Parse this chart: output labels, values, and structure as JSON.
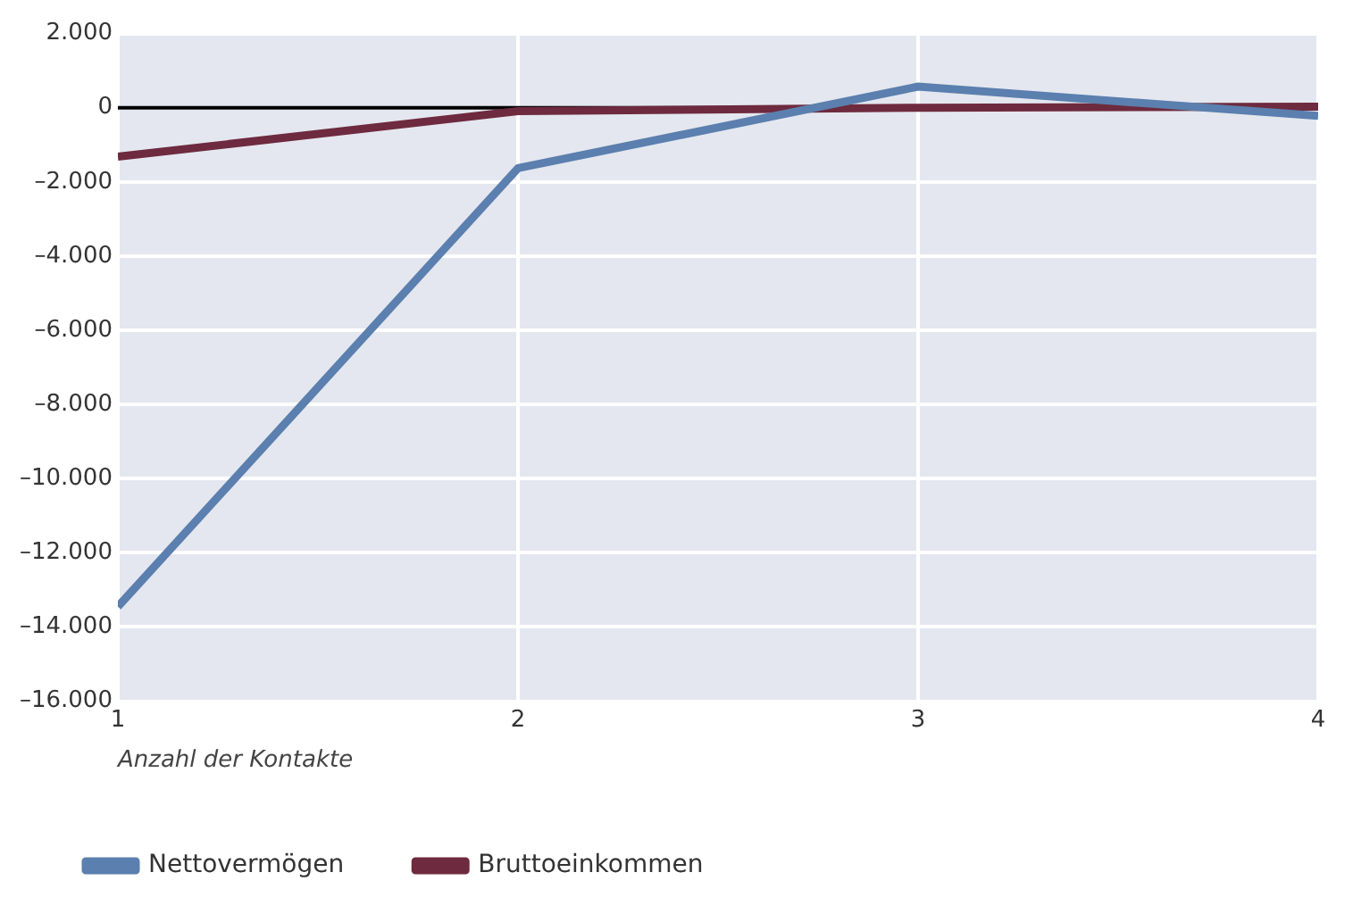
{
  "chart_data": {
    "type": "line",
    "xlabel": "Anzahl der Kontakte",
    "x": [
      1,
      2,
      3,
      4
    ],
    "series": [
      {
        "name": "Nettovermögen",
        "color": "#5b7fae",
        "values": [
          -13450,
          -1630,
          570,
          -220
        ]
      },
      {
        "name": "Bruttoeinkommen",
        "color": "#6e2a3e",
        "values": [
          -1320,
          -90,
          0,
          30
        ]
      }
    ],
    "xlim": [
      1,
      4
    ],
    "xticks": [
      1,
      2,
      3,
      4
    ],
    "ylim": [
      -16000,
      2000
    ],
    "yticks": [
      {
        "value": -16000,
        "label": "–16.000"
      },
      {
        "value": -14000,
        "label": "–14.000"
      },
      {
        "value": -12000,
        "label": "–12.000"
      },
      {
        "value": -10000,
        "label": "–10.000"
      },
      {
        "value": -8000,
        "label": "–8.000"
      },
      {
        "value": -6000,
        "label": "–6.000"
      },
      {
        "value": -4000,
        "label": "–4.000"
      },
      {
        "value": -2000,
        "label": "–2.000"
      },
      0,
      {
        "value": 2000,
        "label": "2.000"
      }
    ],
    "ref_lines": [
      {
        "axis": "y",
        "value": 0,
        "color": "#000000"
      }
    ],
    "grid": true,
    "legend": "bottom left",
    "marker": "none",
    "line_style": "solid"
  }
}
